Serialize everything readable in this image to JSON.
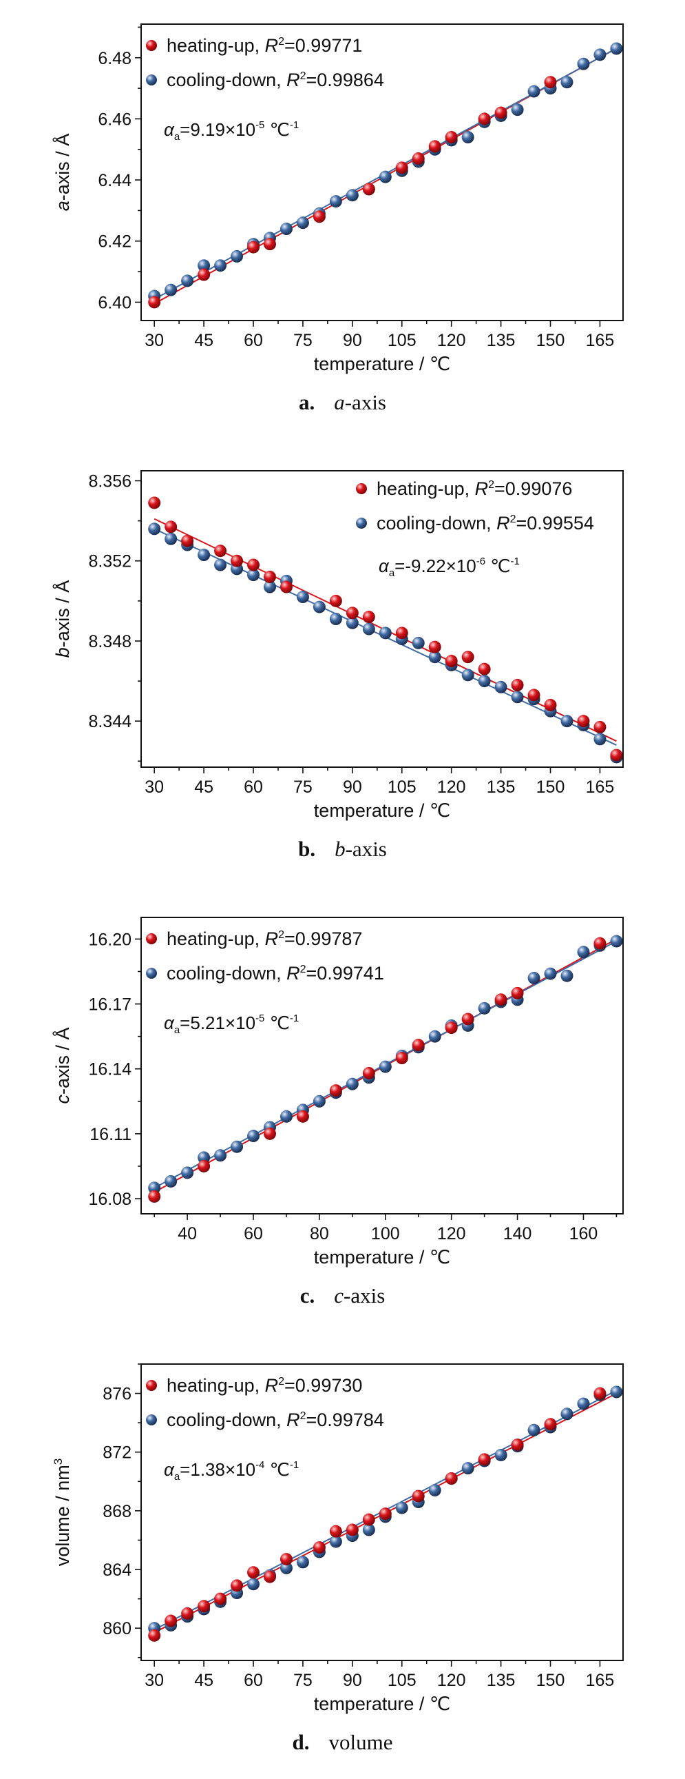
{
  "series_colors": {
    "heating": "#d8141b",
    "cooling": "#3f6aa3"
  },
  "chart_data": [
    {
      "type": "scatter",
      "xlabel": "temperature / ℃",
      "ylabel_italic": "a",
      "ylabel_rest": "-axis / Å",
      "xlim": [
        26,
        172
      ],
      "ylim": [
        6.394,
        6.491
      ],
      "xticks": [
        30,
        45,
        60,
        75,
        90,
        105,
        120,
        135,
        150,
        165
      ],
      "yticks": [
        6.4,
        6.42,
        6.44,
        6.46,
        6.48
      ],
      "ytick_decimals": 2,
      "legend": "top-left",
      "series": [
        {
          "name": "heating-up",
          "r2_label": "R",
          "r2_value": "=0.99771",
          "x": [
            30,
            45,
            60,
            65,
            80,
            95,
            105,
            110,
            115,
            120,
            130,
            135,
            150
          ],
          "y": [
            6.4,
            6.409,
            6.418,
            6.419,
            6.428,
            6.437,
            6.444,
            6.447,
            6.451,
            6.454,
            6.46,
            6.462,
            6.472
          ],
          "fit": [
            6.3995,
            6.4831
          ]
        },
        {
          "name": "cooling-down",
          "r2_label": "R",
          "r2_value": "=0.99864",
          "x": [
            30,
            35,
            40,
            45,
            50,
            55,
            60,
            65,
            70,
            75,
            80,
            85,
            90,
            95,
            100,
            105,
            110,
            115,
            120,
            125,
            130,
            135,
            140,
            145,
            150,
            155,
            160,
            165,
            170
          ],
          "y": [
            6.402,
            6.404,
            6.407,
            6.412,
            6.412,
            6.415,
            6.419,
            6.421,
            6.424,
            6.426,
            6.429,
            6.433,
            6.435,
            6.437,
            6.441,
            6.443,
            6.446,
            6.45,
            6.453,
            6.454,
            6.459,
            6.461,
            6.463,
            6.469,
            6.47,
            6.472,
            6.478,
            6.481,
            6.483
          ],
          "fit": [
            6.401,
            6.483
          ]
        }
      ],
      "annotation": {
        "symbol": "α",
        "subscript": "a",
        "text": "=9.19×10",
        "exponent": "-5",
        "unit": " ℃",
        "unit_exponent": "-1"
      },
      "caption_letter": "a.",
      "caption_italic": "a",
      "caption_rest": "-axis"
    },
    {
      "type": "scatter",
      "xlabel": "temperature / ℃",
      "ylabel_italic": "b",
      "ylabel_rest": "-axis / Å",
      "xlim": [
        26,
        172
      ],
      "ylim": [
        8.3417,
        8.3565
      ],
      "xticks": [
        30,
        45,
        60,
        75,
        90,
        105,
        120,
        135,
        150,
        165
      ],
      "yticks": [
        8.344,
        8.348,
        8.352,
        8.356
      ],
      "ytick_decimals": 3,
      "legend": "top-right",
      "series": [
        {
          "name": "heating-up",
          "r2_label": "R",
          "r2_value": "=0.99076",
          "x": [
            30,
            35,
            40,
            50,
            55,
            60,
            65,
            70,
            85,
            90,
            95,
            105,
            115,
            120,
            125,
            130,
            140,
            145,
            150,
            160,
            165,
            170
          ],
          "y": [
            8.3549,
            8.3537,
            8.353,
            8.3525,
            8.352,
            8.3518,
            8.3512,
            8.3507,
            8.35,
            8.3494,
            8.3492,
            8.3484,
            8.3477,
            8.347,
            8.3472,
            8.3466,
            8.3458,
            8.3453,
            8.3448,
            8.344,
            8.3437,
            8.3423
          ],
          "fit": [
            8.3541,
            8.343
          ]
        },
        {
          "name": "cooling-down",
          "r2_label": "R",
          "r2_value": "=0.99554",
          "x": [
            30,
            35,
            40,
            45,
            50,
            55,
            60,
            65,
            70,
            75,
            80,
            85,
            90,
            95,
            100,
            105,
            110,
            115,
            120,
            125,
            130,
            135,
            140,
            145,
            150,
            155,
            160,
            165,
            170
          ],
          "y": [
            8.3536,
            8.3531,
            8.3528,
            8.3523,
            8.3518,
            8.3516,
            8.3513,
            8.3507,
            8.351,
            8.3502,
            8.3497,
            8.3491,
            8.3489,
            8.3486,
            8.3484,
            8.3481,
            8.3479,
            8.3472,
            8.3468,
            8.3463,
            8.346,
            8.3457,
            8.3452,
            8.3451,
            8.3445,
            8.344,
            8.3438,
            8.3431,
            8.3422
          ],
          "fit": [
            8.3536,
            8.3428
          ]
        }
      ],
      "annotation": {
        "symbol": "α",
        "subscript": "a",
        "text": "=-9.22×10",
        "exponent": "-6",
        "unit": " ℃",
        "unit_exponent": "-1"
      },
      "caption_letter": "b.",
      "caption_italic": "b",
      "caption_rest": "-axis"
    },
    {
      "type": "scatter",
      "xlabel": "temperature / ℃",
      "ylabel_italic": "c",
      "ylabel_rest": "-axis / Å",
      "xlim": [
        26,
        172
      ],
      "ylim": [
        16.073,
        16.21
      ],
      "xticks": [
        40,
        60,
        80,
        100,
        120,
        140,
        160
      ],
      "yticks": [
        16.08,
        16.11,
        16.14,
        16.17,
        16.2
      ],
      "ytick_decimals": 2,
      "legend": "top-left",
      "series": [
        {
          "name": "heating-up",
          "r2_label": "R",
          "r2_value": "=0.99787",
          "x": [
            30,
            45,
            65,
            75,
            85,
            95,
            105,
            110,
            120,
            125,
            135,
            140,
            165
          ],
          "y": [
            16.081,
            16.095,
            16.11,
            16.118,
            16.13,
            16.138,
            16.145,
            16.151,
            16.159,
            16.163,
            16.172,
            16.175,
            16.198
          ],
          "fit": [
            16.083,
            16.2
          ]
        },
        {
          "name": "cooling-down",
          "r2_label": "R",
          "r2_value": "=0.99741",
          "x": [
            30,
            35,
            40,
            45,
            50,
            55,
            60,
            65,
            70,
            75,
            80,
            85,
            90,
            95,
            100,
            105,
            110,
            115,
            120,
            125,
            130,
            135,
            140,
            145,
            150,
            155,
            160,
            165,
            170
          ],
          "y": [
            16.085,
            16.088,
            16.092,
            16.099,
            16.1,
            16.104,
            16.109,
            16.113,
            16.118,
            16.121,
            16.125,
            16.129,
            16.133,
            16.136,
            16.141,
            16.146,
            16.15,
            16.155,
            16.16,
            16.16,
            16.168,
            16.171,
            16.172,
            16.182,
            16.184,
            16.183,
            16.194,
            16.197,
            16.199
          ],
          "fit": [
            16.085,
            16.199
          ]
        }
      ],
      "annotation": {
        "symbol": "α",
        "subscript": "a",
        "text": "=5.21×10",
        "exponent": "-5",
        "unit": " ℃",
        "unit_exponent": "-1"
      },
      "caption_letter": "c.",
      "caption_italic": "c",
      "caption_rest": "-axis"
    },
    {
      "type": "scatter",
      "xlabel": "temperature / ℃",
      "ylabel_italic": "",
      "ylabel_rest": "volume / nm",
      "ylabel_sup": "3",
      "xlim": [
        26,
        172
      ],
      "ylim": [
        857.8,
        878.0
      ],
      "xticks": [
        30,
        45,
        60,
        75,
        90,
        105,
        120,
        135,
        150,
        165
      ],
      "yticks": [
        860,
        864,
        868,
        872,
        876
      ],
      "ytick_decimals": 0,
      "legend": "top-left",
      "series": [
        {
          "name": "heating-up",
          "r2_label": "R",
          "r2_value": "=0.99730",
          "x": [
            30,
            35,
            40,
            45,
            50,
            55,
            60,
            65,
            70,
            80,
            85,
            90,
            95,
            100,
            110,
            120,
            130,
            140,
            150,
            165
          ],
          "y": [
            859.5,
            860.5,
            861.0,
            861.5,
            862.0,
            862.9,
            863.8,
            863.5,
            864.7,
            865.5,
            866.6,
            866.7,
            867.4,
            867.8,
            869.0,
            870.2,
            871.5,
            872.5,
            873.9,
            876.0
          ],
          "fit": [
            859.7,
            876.0
          ]
        },
        {
          "name": "cooling-down",
          "r2_label": "R",
          "r2_value": "=0.99784",
          "x": [
            30,
            35,
            40,
            45,
            50,
            55,
            60,
            65,
            70,
            75,
            80,
            85,
            90,
            95,
            100,
            105,
            110,
            115,
            120,
            125,
            130,
            135,
            140,
            145,
            150,
            155,
            160,
            165,
            170
          ],
          "y": [
            860.0,
            860.2,
            860.8,
            861.3,
            861.8,
            862.4,
            863.0,
            863.6,
            864.1,
            864.5,
            865.2,
            865.9,
            866.3,
            866.7,
            867.6,
            868.2,
            868.6,
            869.4,
            870.2,
            870.9,
            871.4,
            871.8,
            872.4,
            873.5,
            873.7,
            874.6,
            875.3,
            875.9,
            876.1
          ],
          "fit": [
            859.9,
            876.2
          ]
        }
      ],
      "annotation": {
        "symbol": "α",
        "subscript": "a",
        "text": "=1.38×10",
        "exponent": "-4",
        "unit": " ℃",
        "unit_exponent": "-1"
      },
      "caption_letter": "d.",
      "caption_italic": "",
      "caption_rest": "volume"
    }
  ]
}
